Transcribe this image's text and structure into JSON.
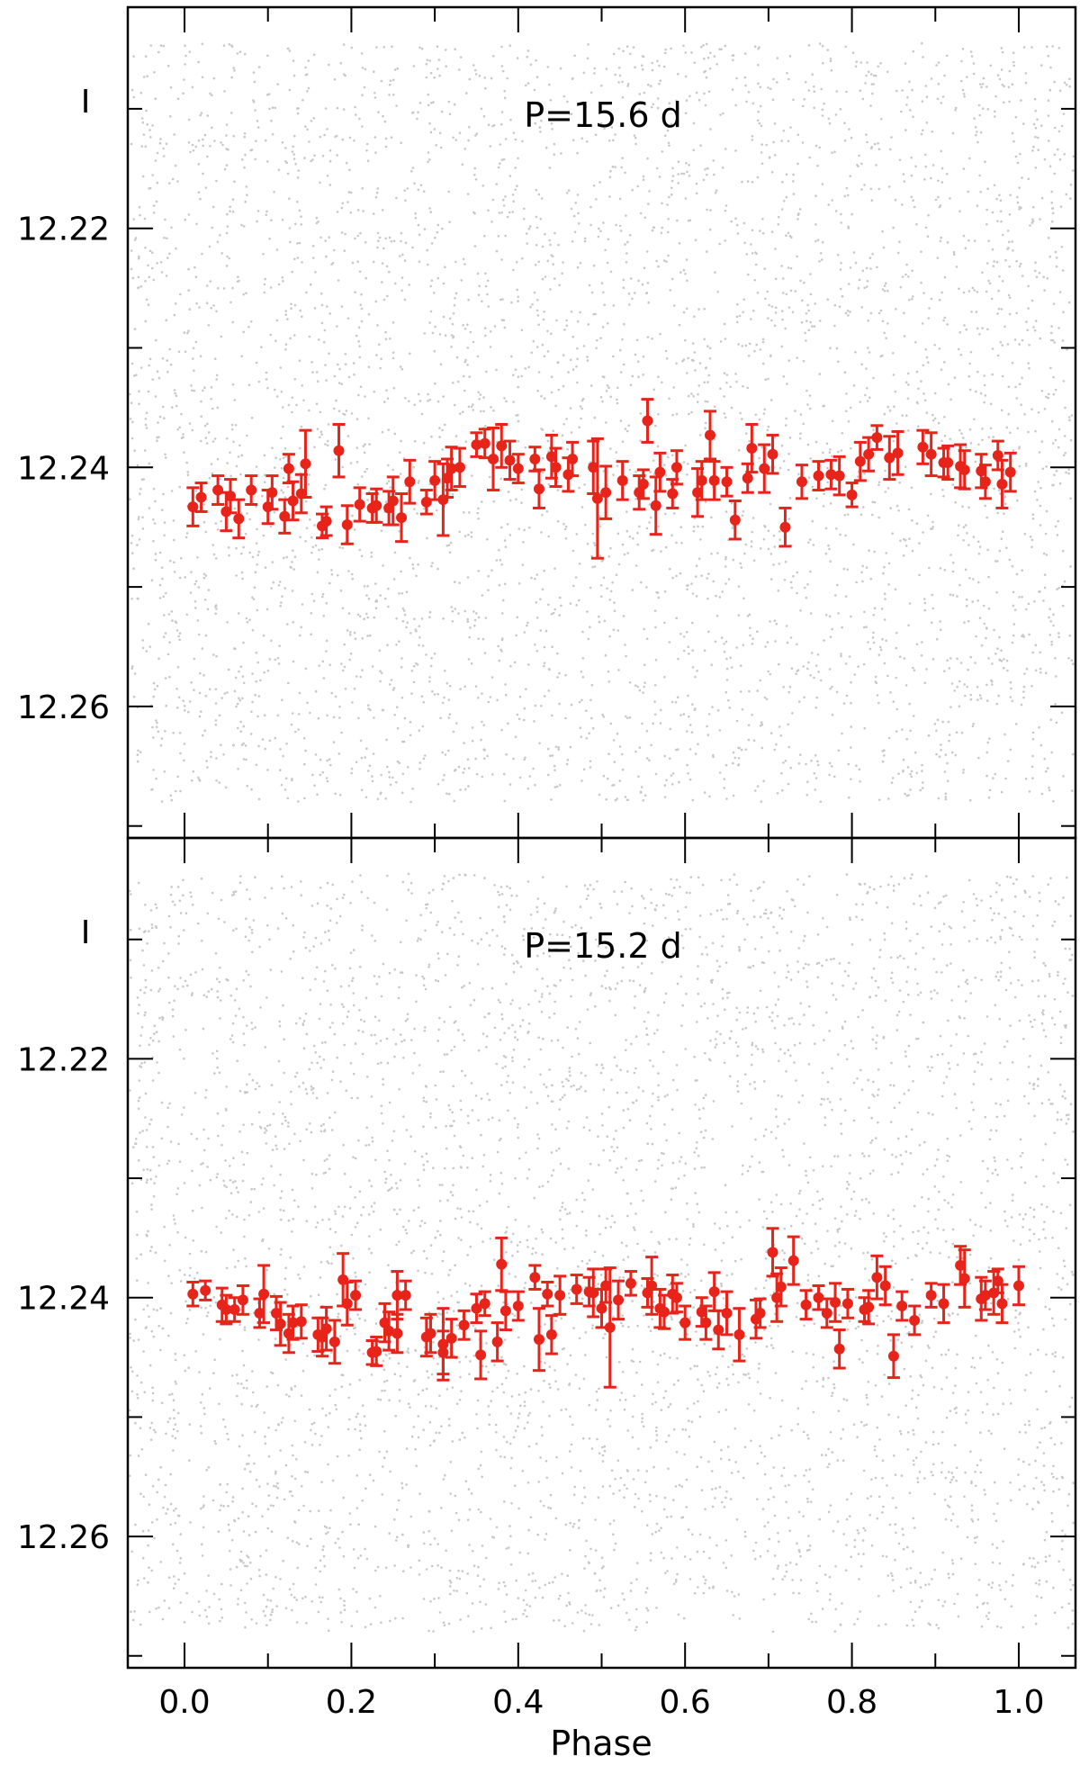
{
  "chart_data": [
    {
      "type": "scatter",
      "ylabel": "I",
      "annotation": "P=15.6 d",
      "xlim": [
        -0.068,
        1.068
      ],
      "ylim": [
        12.271,
        12.2015
      ],
      "y_ticks": [
        12.22,
        12.24,
        12.26
      ],
      "y_inverted": true,
      "background_points_color": "#c8c8c8",
      "series_color": "#e8231a",
      "series": [
        {
          "x": [
            0.01,
            0.02,
            0.04,
            0.05,
            0.055,
            0.065,
            0.08,
            0.1,
            0.105,
            0.12,
            0.125,
            0.13,
            0.14,
            0.145,
            0.165,
            0.17,
            0.185,
            0.195,
            0.21,
            0.225,
            0.23,
            0.245,
            0.25,
            0.26,
            0.27,
            0.29,
            0.3,
            0.31,
            0.315,
            0.32,
            0.33,
            0.35,
            0.36,
            0.37,
            0.38,
            0.39,
            0.4,
            0.42,
            0.425,
            0.44,
            0.445,
            0.46,
            0.465,
            0.49,
            0.495,
            0.505,
            0.525,
            0.545,
            0.55,
            0.555,
            0.565,
            0.57,
            0.585,
            0.59,
            0.615,
            0.62,
            0.63,
            0.635,
            0.65,
            0.66,
            0.675,
            0.68,
            0.695,
            0.705,
            0.72,
            0.74,
            0.76,
            0.775,
            0.785,
            0.8,
            0.81,
            0.82,
            0.83,
            0.845,
            0.855,
            0.885,
            0.895,
            0.91,
            0.915,
            0.93,
            0.935,
            0.955,
            0.96,
            0.975,
            0.98,
            0.99
          ],
          "y": [
            12.2433,
            12.2425,
            12.2419,
            12.2437,
            12.2424,
            12.2443,
            12.2419,
            12.2433,
            12.2421,
            12.2441,
            12.2401,
            12.2428,
            12.2422,
            12.2397,
            12.2449,
            12.2445,
            12.2386,
            12.2448,
            12.2431,
            12.2434,
            12.2432,
            12.2434,
            12.2428,
            12.2442,
            12.2412,
            12.2429,
            12.2411,
            12.2427,
            12.2409,
            12.2401,
            12.24,
            12.2381,
            12.238,
            12.2393,
            12.2382,
            12.2394,
            12.2401,
            12.2393,
            12.2418,
            12.2391,
            12.24,
            12.2406,
            12.2393,
            12.24,
            12.2426,
            12.2421,
            12.2411,
            12.2421,
            12.2414,
            12.2361,
            12.2432,
            12.2404,
            12.2422,
            12.24,
            12.2421,
            12.2411,
            12.2373,
            12.2411,
            12.2412,
            12.2444,
            12.2409,
            12.2384,
            12.2401,
            12.2389,
            12.245,
            12.2412,
            12.2407,
            12.2406,
            12.2407,
            12.2423,
            12.2395,
            12.2389,
            12.2375,
            12.2392,
            12.2388,
            12.2383,
            12.2389,
            12.2396,
            12.2396,
            12.2399,
            12.2402,
            12.2403,
            12.2412,
            12.239,
            12.2414,
            12.2404
          ],
          "err": [
            0.0016,
            0.0012,
            0.0012,
            0.0016,
            0.0014,
            0.0016,
            0.0012,
            0.0014,
            0.0014,
            0.0014,
            0.0012,
            0.0016,
            0.0016,
            0.0028,
            0.001,
            0.0012,
            0.0022,
            0.0016,
            0.0014,
            0.0012,
            0.0014,
            0.0014,
            0.002,
            0.002,
            0.0018,
            0.001,
            0.0016,
            0.003,
            0.0016,
            0.0018,
            0.0016,
            0.001,
            0.0012,
            0.0026,
            0.0018,
            0.0016,
            0.0012,
            0.001,
            0.0016,
            0.0018,
            0.0016,
            0.0014,
            0.0014,
            0.0022,
            0.005,
            0.0022,
            0.0016,
            0.0014,
            0.0012,
            0.0018,
            0.0024,
            0.0016,
            0.0012,
            0.0014,
            0.002,
            0.0016,
            0.002,
            0.0016,
            0.0012,
            0.0016,
            0.0012,
            0.002,
            0.002,
            0.0016,
            0.0016,
            0.0014,
            0.0012,
            0.0012,
            0.0016,
            0.001,
            0.0016,
            0.0014,
            0.001,
            0.0018,
            0.0018,
            0.0014,
            0.0018,
            0.0012,
            0.0014,
            0.0018,
            0.0016,
            0.0014,
            0.0014,
            0.0012,
            0.002,
            0.0016
          ]
        }
      ]
    },
    {
      "type": "scatter",
      "ylabel": "I",
      "annotation": "P=15.2 d",
      "xlabel": "Phase",
      "xlim": [
        -0.068,
        1.068
      ],
      "x_ticks": [
        "0.0",
        "0.2",
        "0.4",
        "0.6",
        "0.8",
        "1.0"
      ],
      "ylim": [
        12.271,
        12.2015
      ],
      "y_ticks": [
        12.22,
        12.24,
        12.26
      ],
      "y_inverted": true,
      "background_points_color": "#c8c8c8",
      "series_color": "#e8231a",
      "series": [
        {
          "x": [
            0.01,
            0.025,
            0.045,
            0.05,
            0.06,
            0.07,
            0.09,
            0.095,
            0.11,
            0.115,
            0.125,
            0.13,
            0.14,
            0.16,
            0.165,
            0.17,
            0.18,
            0.19,
            0.195,
            0.205,
            0.225,
            0.23,
            0.24,
            0.245,
            0.255,
            0.255,
            0.265,
            0.29,
            0.295,
            0.31,
            0.31,
            0.32,
            0.335,
            0.35,
            0.355,
            0.36,
            0.375,
            0.38,
            0.385,
            0.4,
            0.42,
            0.425,
            0.435,
            0.44,
            0.45,
            0.47,
            0.485,
            0.49,
            0.5,
            0.505,
            0.51,
            0.52,
            0.535,
            0.555,
            0.56,
            0.57,
            0.575,
            0.585,
            0.59,
            0.6,
            0.62,
            0.625,
            0.635,
            0.64,
            0.65,
            0.665,
            0.685,
            0.69,
            0.705,
            0.71,
            0.715,
            0.73,
            0.745,
            0.76,
            0.77,
            0.78,
            0.785,
            0.795,
            0.815,
            0.82,
            0.83,
            0.84,
            0.85,
            0.86,
            0.875,
            0.895,
            0.91,
            0.93,
            0.935,
            0.955,
            0.96,
            0.97,
            0.975,
            0.98,
            1.0
          ],
          "y": [
            12.2397,
            12.2394,
            12.2406,
            12.241,
            12.241,
            12.2402,
            12.2413,
            12.2397,
            12.2413,
            12.2422,
            12.243,
            12.2421,
            12.242,
            12.2431,
            12.2433,
            12.2426,
            12.2437,
            12.2385,
            12.2405,
            12.2398,
            12.2446,
            12.2445,
            12.2421,
            12.2428,
            12.243,
            12.2398,
            12.2398,
            12.2433,
            12.243,
            12.2446,
            12.2439,
            12.2434,
            12.2423,
            12.2409,
            12.2448,
            12.2405,
            12.2437,
            12.2372,
            12.2411,
            12.2407,
            12.2383,
            12.2435,
            12.2397,
            12.2431,
            12.2398,
            12.2393,
            12.2395,
            12.2396,
            12.2409,
            12.239,
            12.2425,
            12.2402,
            12.2388,
            12.2396,
            12.239,
            12.2409,
            12.2412,
            12.2397,
            12.24,
            12.2421,
            12.2412,
            12.2421,
            12.2395,
            12.2427,
            12.2413,
            12.2431,
            12.2418,
            12.2413,
            12.2362,
            12.24,
            12.2391,
            12.2369,
            12.2406,
            12.24,
            12.2413,
            12.2404,
            12.2443,
            12.2405,
            12.241,
            12.2408,
            12.2383,
            12.239,
            12.2449,
            12.2407,
            12.2419,
            12.2398,
            12.2405,
            12.2373,
            12.2384,
            12.2401,
            12.2398,
            12.2396,
            12.2386,
            12.2405,
            12.239
          ],
          "err": [
            0.001,
            0.0008,
            0.0014,
            0.0012,
            0.001,
            0.0012,
            0.0012,
            0.0024,
            0.0014,
            0.0018,
            0.0016,
            0.0014,
            0.0014,
            0.0014,
            0.0016,
            0.0018,
            0.0018,
            0.0022,
            0.0018,
            0.0012,
            0.001,
            0.0012,
            0.0016,
            0.0016,
            0.0016,
            0.002,
            0.0012,
            0.0016,
            0.0016,
            0.0018,
            0.003,
            0.0016,
            0.0012,
            0.0012,
            0.002,
            0.001,
            0.0016,
            0.0022,
            0.0016,
            0.0012,
            0.001,
            0.0026,
            0.001,
            0.0016,
            0.0016,
            0.0012,
            0.0012,
            0.002,
            0.0016,
            0.0014,
            0.005,
            0.0016,
            0.001,
            0.0012,
            0.0024,
            0.0016,
            0.0014,
            0.0016,
            0.0012,
            0.0014,
            0.0012,
            0.0014,
            0.0016,
            0.0016,
            0.0018,
            0.0022,
            0.0016,
            0.0012,
            0.002,
            0.002,
            0.0016,
            0.002,
            0.0012,
            0.001,
            0.0012,
            0.0016,
            0.0016,
            0.0012,
            0.001,
            0.0014,
            0.0018,
            0.0016,
            0.0018,
            0.0012,
            0.0012,
            0.001,
            0.0016,
            0.0016,
            0.0024,
            0.0018,
            0.0012,
            0.0018,
            0.001,
            0.0016,
            0.0016
          ]
        }
      ]
    }
  ]
}
